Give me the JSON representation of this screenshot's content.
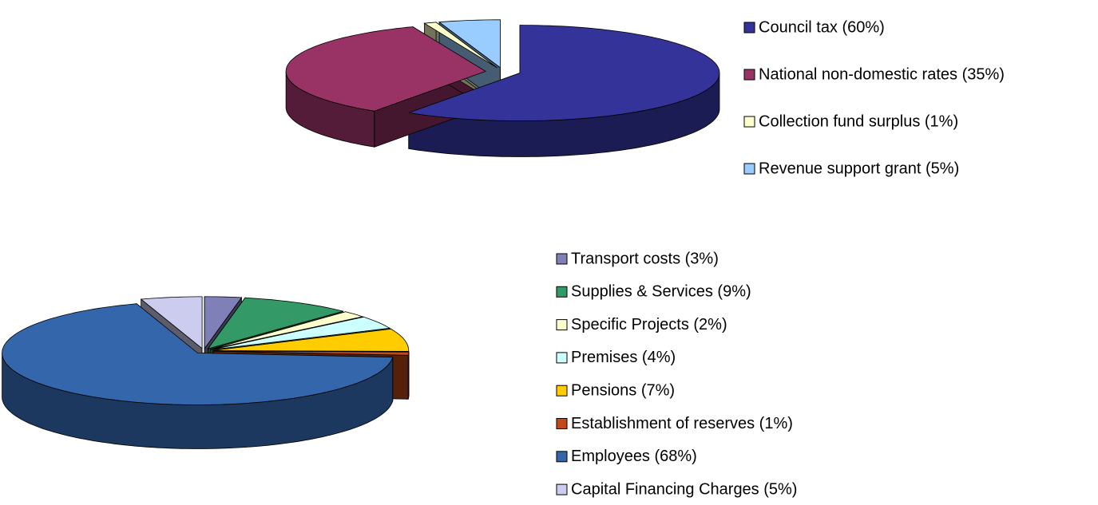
{
  "chart_data": [
    {
      "type": "pie3d",
      "categories": [
        "Council tax (60%)",
        "National non-domestic rates (35%)",
        "Collection fund surplus (1%)",
        "Revenue support grant (5%)"
      ],
      "values": [
        60,
        35,
        1,
        5
      ],
      "colors": [
        "#333399",
        "#993366",
        "#ffffcc",
        "#99ccff"
      ]
    },
    {
      "type": "pie3d",
      "categories": [
        "Transport costs (3%)",
        "Supplies & Services (9%)",
        "Specific Projects (2%)",
        "Premises (4%)",
        "Pensions (7%)",
        "Establishment of reserves (1%)",
        "Employees (68%)",
        "Capital Financing Charges (5%)"
      ],
      "values": [
        3,
        9,
        2,
        4,
        7,
        1,
        68,
        5
      ],
      "colors": [
        "#8080b8",
        "#339966",
        "#ffffcc",
        "#ccffff",
        "#ffcc00",
        "#c04a18",
        "#3366aa",
        "#ccccee"
      ]
    }
  ]
}
